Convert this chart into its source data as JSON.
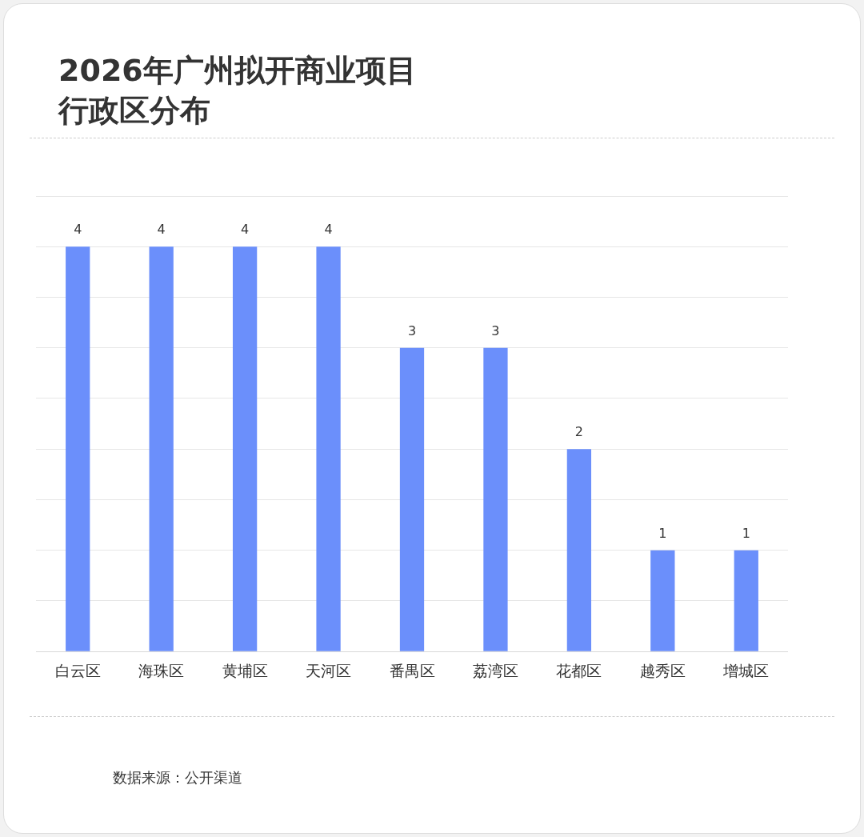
{
  "chart_data": {
    "type": "bar",
    "title": "2026年广州拟开商业项目行政区分布",
    "categories": [
      "白云区",
      "海珠区",
      "黄埔区",
      "天河区",
      "番禺区",
      "荔湾区",
      "花都区",
      "越秀区",
      "增城区"
    ],
    "values": [
      4,
      4,
      4,
      4,
      3,
      3,
      2,
      1,
      1
    ],
    "color": "#6b8ffb",
    "ylim": [
      0,
      4.5
    ],
    "yticks": [
      {
        "value": 0,
        "label": null
      },
      {
        "value": 0.5,
        "label": null
      },
      {
        "value": 1,
        "label": null
      },
      {
        "value": 1.5,
        "label": null
      },
      {
        "value": 2,
        "label": null
      },
      {
        "value": 2.5,
        "label": null
      },
      {
        "value": 3,
        "label": null
      },
      {
        "value": 3.5,
        "label": null
      },
      {
        "value": 4,
        "label": null
      },
      {
        "value": 4.5,
        "label": null
      }
    ],
    "grid": "y",
    "tick_labels": "x",
    "data_labels": true,
    "annotations": [
      "数据来源：公开渠道"
    ]
  }
}
